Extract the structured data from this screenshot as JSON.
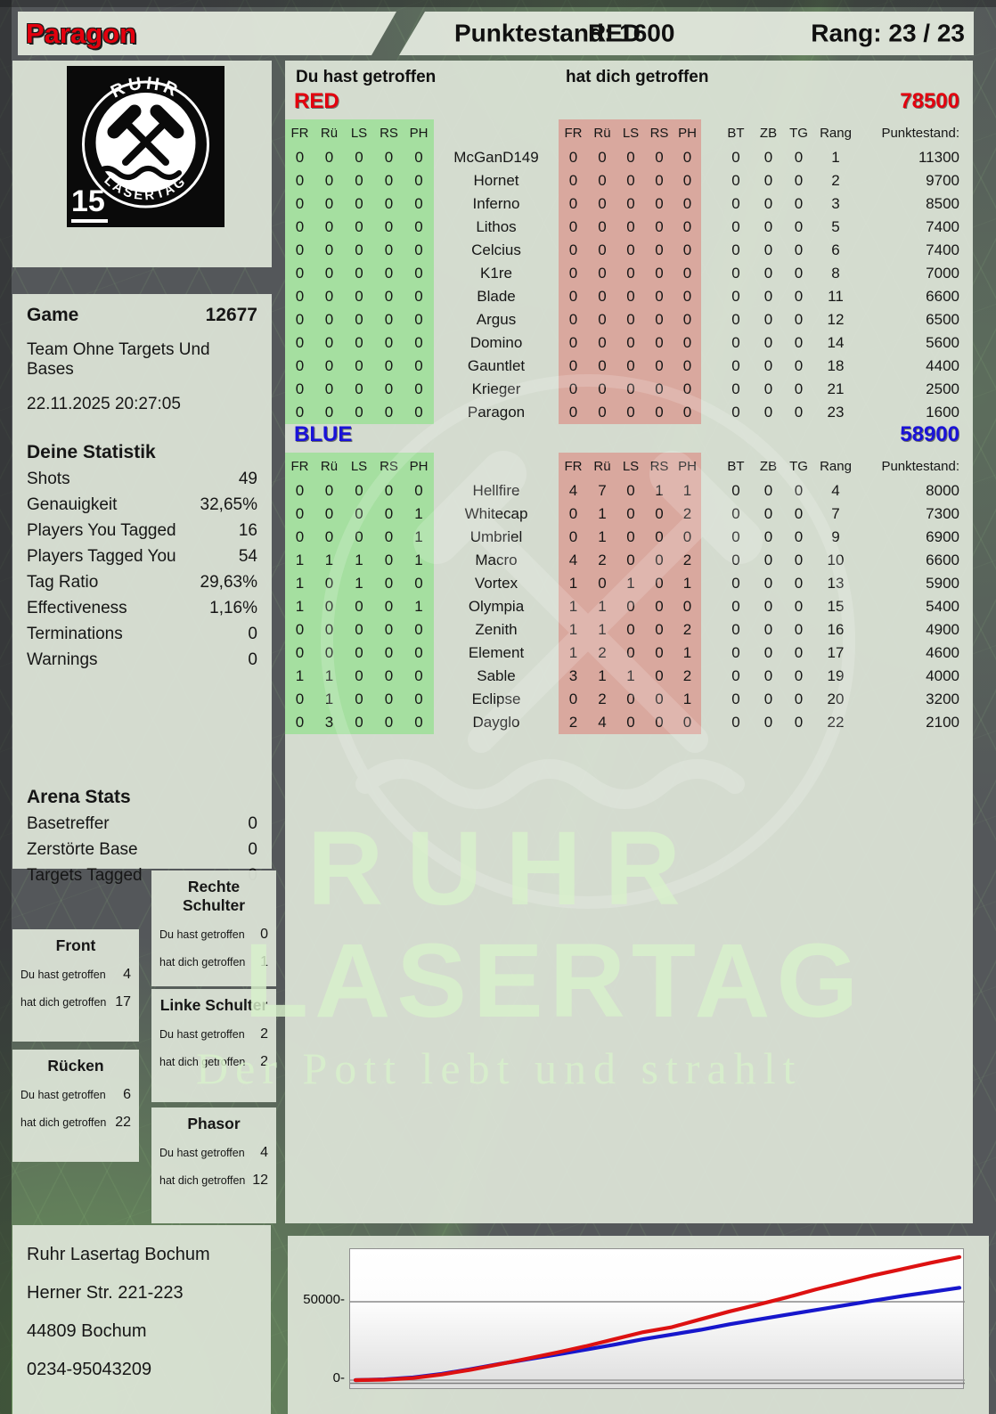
{
  "page": {
    "colors": {
      "red_team": "#e3000e",
      "blue_team": "#1a12d8",
      "green_cell": "#a5dfa0",
      "red_cell": "#d9a89e"
    },
    "header": {
      "player_name": "Paragon",
      "punktestand": "Punktestand: 1600",
      "team": "RED",
      "rang": "Rang: 23 / 23"
    },
    "logo": {
      "arc_top": "RUHR",
      "arc_bottom": "LASERTAG",
      "badge": "15"
    },
    "sidebar": {
      "game": {
        "label": "Game",
        "value": "12677"
      },
      "mode": "Team Ohne Targets Und Bases",
      "datetime": "22.11.2025 20:27:05",
      "stats": {
        "title": "Deine Statistik",
        "rows": [
          {
            "label": "Shots",
            "value": "49"
          },
          {
            "label": "Genauigkeit",
            "value": "32,65%"
          },
          {
            "label": "Players You Tagged",
            "value": "16"
          },
          {
            "label": "Players Tagged You",
            "value": "54"
          },
          {
            "label": "Tag Ratio",
            "value": "29,63%"
          },
          {
            "label": "Effectiveness",
            "value": "1,16%"
          },
          {
            "label": "Terminations",
            "value": "0"
          },
          {
            "label": "Warnings",
            "value": "0"
          }
        ]
      },
      "arena": {
        "title": "Arena Stats",
        "rows": [
          {
            "label": "Basetreffer",
            "value": "0"
          },
          {
            "label": "Zerstörte Base",
            "value": "0"
          },
          {
            "label": "Targets Tagged",
            "value": "0"
          }
        ]
      }
    },
    "hitboxes": {
      "du_label": "Du hast getroffen",
      "hat_label": "hat dich getroffen",
      "boxes": [
        {
          "id": "rechte-schulter",
          "title": "Rechte Schulter",
          "du": "0",
          "hat": "1"
        },
        {
          "id": "front",
          "title": "Front",
          "du": "4",
          "hat": "17"
        },
        {
          "id": "linke-schulter",
          "title": "Linke Schulter",
          "du": "2",
          "hat": "2"
        },
        {
          "id": "ruecken",
          "title": "Rücken",
          "du": "6",
          "hat": "22"
        },
        {
          "id": "phasor",
          "title": "Phasor",
          "du": "4",
          "hat": "12"
        }
      ]
    },
    "scoreboard": {
      "du_label": "Du hast getroffen",
      "hat_label": "hat dich getroffen",
      "col_headers": [
        "FR",
        "Rü",
        "LS",
        "RS",
        "PH"
      ],
      "extra_headers": [
        "BT",
        "ZB",
        "TG"
      ],
      "rang_header": "Rang",
      "punkte_header": "Punktestand:",
      "teams": [
        {
          "name": "RED",
          "color": "#e3000e",
          "total": "78500",
          "rows": [
            {
              "du": [
                0,
                0,
                0,
                0,
                0
              ],
              "name": "McGanD149",
              "hat": [
                0,
                0,
                0,
                0,
                0
              ],
              "extra": [
                0,
                0,
                0
              ],
              "rang": "1",
              "punkte": "11300"
            },
            {
              "du": [
                0,
                0,
                0,
                0,
                0
              ],
              "name": "Hornet",
              "hat": [
                0,
                0,
                0,
                0,
                0
              ],
              "extra": [
                0,
                0,
                0
              ],
              "rang": "2",
              "punkte": "9700"
            },
            {
              "du": [
                0,
                0,
                0,
                0,
                0
              ],
              "name": "Inferno",
              "hat": [
                0,
                0,
                0,
                0,
                0
              ],
              "extra": [
                0,
                0,
                0
              ],
              "rang": "3",
              "punkte": "8500"
            },
            {
              "du": [
                0,
                0,
                0,
                0,
                0
              ],
              "name": "Lithos",
              "hat": [
                0,
                0,
                0,
                0,
                0
              ],
              "extra": [
                0,
                0,
                0
              ],
              "rang": "5",
              "punkte": "7400"
            },
            {
              "du": [
                0,
                0,
                0,
                0,
                0
              ],
              "name": "Celcius",
              "hat": [
                0,
                0,
                0,
                0,
                0
              ],
              "extra": [
                0,
                0,
                0
              ],
              "rang": "6",
              "punkte": "7400"
            },
            {
              "du": [
                0,
                0,
                0,
                0,
                0
              ],
              "name": "K1re",
              "hat": [
                0,
                0,
                0,
                0,
                0
              ],
              "extra": [
                0,
                0,
                0
              ],
              "rang": "8",
              "punkte": "7000"
            },
            {
              "du": [
                0,
                0,
                0,
                0,
                0
              ],
              "name": "Blade",
              "hat": [
                0,
                0,
                0,
                0,
                0
              ],
              "extra": [
                0,
                0,
                0
              ],
              "rang": "11",
              "punkte": "6600"
            },
            {
              "du": [
                0,
                0,
                0,
                0,
                0
              ],
              "name": "Argus",
              "hat": [
                0,
                0,
                0,
                0,
                0
              ],
              "extra": [
                0,
                0,
                0
              ],
              "rang": "12",
              "punkte": "6500"
            },
            {
              "du": [
                0,
                0,
                0,
                0,
                0
              ],
              "name": "Domino",
              "hat": [
                0,
                0,
                0,
                0,
                0
              ],
              "extra": [
                0,
                0,
                0
              ],
              "rang": "14",
              "punkte": "5600"
            },
            {
              "du": [
                0,
                0,
                0,
                0,
                0
              ],
              "name": "Gauntlet",
              "hat": [
                0,
                0,
                0,
                0,
                0
              ],
              "extra": [
                0,
                0,
                0
              ],
              "rang": "18",
              "punkte": "4400"
            },
            {
              "du": [
                0,
                0,
                0,
                0,
                0
              ],
              "name": "Krieger",
              "hat": [
                0,
                0,
                0,
                0,
                0
              ],
              "extra": [
                0,
                0,
                0
              ],
              "rang": "21",
              "punkte": "2500"
            },
            {
              "du": [
                0,
                0,
                0,
                0,
                0
              ],
              "name": "Paragon",
              "hat": [
                0,
                0,
                0,
                0,
                0
              ],
              "extra": [
                0,
                0,
                0
              ],
              "rang": "23",
              "punkte": "1600"
            }
          ]
        },
        {
          "name": "BLUE",
          "color": "#1a12d8",
          "total": "58900",
          "rows": [
            {
              "du": [
                0,
                0,
                0,
                0,
                0
              ],
              "name": "Hellfire",
              "hat": [
                4,
                7,
                0,
                1,
                1
              ],
              "extra": [
                0,
                0,
                0
              ],
              "rang": "4",
              "punkte": "8000"
            },
            {
              "du": [
                0,
                0,
                0,
                0,
                1
              ],
              "name": "Whitecap",
              "hat": [
                0,
                1,
                0,
                0,
                2
              ],
              "extra": [
                0,
                0,
                0
              ],
              "rang": "7",
              "punkte": "7300"
            },
            {
              "du": [
                0,
                0,
                0,
                0,
                1
              ],
              "name": "Umbriel",
              "hat": [
                0,
                1,
                0,
                0,
                0
              ],
              "extra": [
                0,
                0,
                0
              ],
              "rang": "9",
              "punkte": "6900"
            },
            {
              "du": [
                1,
                1,
                1,
                0,
                1
              ],
              "name": "Macro",
              "hat": [
                4,
                2,
                0,
                0,
                2
              ],
              "extra": [
                0,
                0,
                0
              ],
              "rang": "10",
              "punkte": "6600"
            },
            {
              "du": [
                1,
                0,
                1,
                0,
                0
              ],
              "name": "Vortex",
              "hat": [
                1,
                0,
                1,
                0,
                1
              ],
              "extra": [
                0,
                0,
                0
              ],
              "rang": "13",
              "punkte": "5900"
            },
            {
              "du": [
                1,
                0,
                0,
                0,
                1
              ],
              "name": "Olympia",
              "hat": [
                1,
                1,
                0,
                0,
                0
              ],
              "extra": [
                0,
                0,
                0
              ],
              "rang": "15",
              "punkte": "5400"
            },
            {
              "du": [
                0,
                0,
                0,
                0,
                0
              ],
              "name": "Zenith",
              "hat": [
                1,
                1,
                0,
                0,
                2
              ],
              "extra": [
                0,
                0,
                0
              ],
              "rang": "16",
              "punkte": "4900"
            },
            {
              "du": [
                0,
                0,
                0,
                0,
                0
              ],
              "name": "Element",
              "hat": [
                1,
                2,
                0,
                0,
                1
              ],
              "extra": [
                0,
                0,
                0
              ],
              "rang": "17",
              "punkte": "4600"
            },
            {
              "du": [
                1,
                1,
                0,
                0,
                0
              ],
              "name": "Sable",
              "hat": [
                3,
                1,
                1,
                0,
                2
              ],
              "extra": [
                0,
                0,
                0
              ],
              "rang": "19",
              "punkte": "4000"
            },
            {
              "du": [
                0,
                1,
                0,
                0,
                0
              ],
              "name": "Eclipse",
              "hat": [
                0,
                2,
                0,
                0,
                1
              ],
              "extra": [
                0,
                0,
                0
              ],
              "rang": "20",
              "punkte": "3200"
            },
            {
              "du": [
                0,
                3,
                0,
                0,
                0
              ],
              "name": "Dayglo",
              "hat": [
                2,
                4,
                0,
                0,
                0
              ],
              "extra": [
                0,
                0,
                0
              ],
              "rang": "22",
              "punkte": "2100"
            }
          ]
        }
      ]
    },
    "watermark": {
      "line1": "RUHR",
      "line2": "LASERTAG",
      "line3": "Der Pott lebt und strahlt"
    },
    "address": {
      "lines": [
        "Ruhr Lasertag Bochum",
        "Herner Str. 221-223",
        "44809 Bochum",
        "0234-95043209"
      ]
    }
  },
  "chart_data": {
    "type": "line",
    "title": "",
    "xlabel": "",
    "ylabel": "",
    "yticks": [
      0,
      50000
    ],
    "ylim": [
      0,
      83000
    ],
    "grid": true,
    "legend": "none",
    "x": [
      0,
      1,
      2,
      3,
      4,
      5,
      6,
      7,
      8,
      9,
      10,
      11,
      12,
      13,
      14,
      15,
      16,
      17,
      18,
      19,
      20,
      21
    ],
    "series": [
      {
        "name": "RED",
        "color": "#dd1111",
        "values": [
          0,
          300,
          1300,
          3600,
          6600,
          10100,
          13800,
          17600,
          21600,
          26100,
          30600,
          33800,
          38800,
          43800,
          48200,
          52800,
          57800,
          62300,
          66800,
          70800,
          74800,
          78500
        ]
      },
      {
        "name": "BLUE",
        "color": "#1717cc",
        "values": [
          0,
          500,
          1700,
          4000,
          7000,
          10300,
          13300,
          16300,
          19400,
          22600,
          26100,
          29100,
          32100,
          35600,
          38700,
          41700,
          44700,
          47700,
          50700,
          53600,
          56200,
          58900
        ]
      }
    ]
  }
}
